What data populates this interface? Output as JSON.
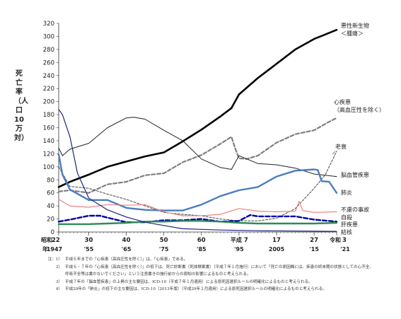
{
  "page": {
    "ylabel": "死亡率（人口10万対）"
  },
  "notes": [
    {
      "num": "注：1）",
      "text": "平成６年までの「心疾患（高血圧性を除く）」は、「心疾患」である。"
    },
    {
      "num": "2）",
      "text": "平成６・７年の「心疾患（高血圧性を除く）」の低下は、死亡診断書（死体検案書）（平成７年１月施行）において「死亡の原因欄には、疾患の終末期の状態としての心不全、呼吸不全等は書かないでください」という注意書きの施行前からの周知の影響によるものと考えられる。"
    },
    {
      "num": "3）",
      "text": "平成７年の「脳血管疾患」の上昇の主な要因は、ICD-10（平成７年１月適用）による原死因選択ルールの明確化によるものと考えられる。"
    },
    {
      "num": "4）",
      "text": "平成29年の「肺炎」の低下の主な要因は、ICD-10（2013年版）（平成29年１月適用）による原死因選択ルールの明確化によるものと考えられる。"
    }
  ],
  "chart_data": {
    "type": "line",
    "ylabel": "死亡率（人口10万対）",
    "ylim": [
      0,
      320
    ],
    "yticks": [
      0,
      20,
      40,
      60,
      80,
      100,
      120,
      140,
      160,
      180,
      200,
      220,
      240,
      260,
      280,
      300,
      320
    ],
    "xlim": [
      1947,
      2021
    ],
    "xticks": [
      {
        "year": 1947,
        "era": "昭和",
        "top": "22",
        "bottom": "1947"
      },
      {
        "year": 1955,
        "top": "30",
        "bottom": "'55"
      },
      {
        "year": 1965,
        "top": "40",
        "bottom": "'65"
      },
      {
        "year": 1975,
        "top": "50",
        "bottom": "'75"
      },
      {
        "year": 1985,
        "top": "60",
        "bottom": "'85"
      },
      {
        "year": 1995,
        "era": "平成",
        "top": "7",
        "bottom": "'95"
      },
      {
        "year": 2005,
        "top": "17",
        "bottom": "2005"
      },
      {
        "year": 2015,
        "top": "27",
        "bottom": "'15"
      },
      {
        "year": 2021,
        "era": "令和",
        "top": "3",
        "bottom": "'21"
      }
    ],
    "xaxis_era_label": "年",
    "grid": false,
    "series": [
      {
        "name": "悪性新生物\n＜腫瘍＞",
        "color": "#000000",
        "width": 2.6,
        "dash": "",
        "points": [
          [
            1947,
            69
          ],
          [
            1950,
            77
          ],
          [
            1955,
            88
          ],
          [
            1960,
            100
          ],
          [
            1965,
            108
          ],
          [
            1970,
            116
          ],
          [
            1975,
            122
          ],
          [
            1980,
            139
          ],
          [
            1985,
            157
          ],
          [
            1990,
            177
          ],
          [
            1993,
            190
          ],
          [
            1995,
            211
          ],
          [
            2000,
            236
          ],
          [
            2005,
            258
          ],
          [
            2010,
            280
          ],
          [
            2015,
            296
          ],
          [
            2018,
            303
          ],
          [
            2021,
            310
          ]
        ]
      },
      {
        "name": "心疾患\n（高血圧性を除く）",
        "color": "#7f7f7f",
        "width": 2.2,
        "dash": "5,3",
        "points": [
          [
            1947,
            62
          ],
          [
            1950,
            64
          ],
          [
            1955,
            60
          ],
          [
            1960,
            73
          ],
          [
            1965,
            77
          ],
          [
            1970,
            87
          ],
          [
            1975,
            90
          ],
          [
            1980,
            107
          ],
          [
            1985,
            118
          ],
          [
            1990,
            135
          ],
          [
            1993,
            146
          ],
          [
            1994,
            128
          ],
          [
            1995,
            113
          ],
          [
            1997,
            112
          ],
          [
            2000,
            117
          ],
          [
            2005,
            137
          ],
          [
            2010,
            150
          ],
          [
            2015,
            156
          ],
          [
            2018,
            166
          ],
          [
            2021,
            175
          ]
        ]
      },
      {
        "name": "老衰",
        "color": "#444444",
        "width": 1,
        "dash": "3,2",
        "points": [
          [
            1947,
            100
          ],
          [
            1950,
            70
          ],
          [
            1955,
            67
          ],
          [
            1960,
            58
          ],
          [
            1965,
            50
          ],
          [
            1970,
            40
          ],
          [
            1975,
            30
          ],
          [
            1980,
            27
          ],
          [
            1985,
            25
          ],
          [
            1990,
            20
          ],
          [
            1995,
            17
          ],
          [
            2000,
            17
          ],
          [
            2005,
            21
          ],
          [
            2010,
            36
          ],
          [
            2015,
            67
          ],
          [
            2018,
            88
          ],
          [
            2021,
            124
          ]
        ]
      },
      {
        "name": "脳血管疾患",
        "color": "#222222",
        "width": 1,
        "dash": "",
        "points": [
          [
            1947,
            129
          ],
          [
            1948,
            117
          ],
          [
            1950,
            127
          ],
          [
            1955,
            136
          ],
          [
            1960,
            160
          ],
          [
            1965,
            175
          ],
          [
            1967,
            176
          ],
          [
            1970,
            173
          ],
          [
            1975,
            156
          ],
          [
            1980,
            140
          ],
          [
            1985,
            112
          ],
          [
            1990,
            99
          ],
          [
            1993,
            96
          ],
          [
            1995,
            117
          ],
          [
            2000,
            105
          ],
          [
            2005,
            103
          ],
          [
            2010,
            98
          ],
          [
            2015,
            89
          ],
          [
            2021,
            85
          ]
        ]
      },
      {
        "name": "肺炎",
        "color": "#4a7ebf",
        "width": 2.4,
        "dash": "",
        "points": [
          [
            1947,
            119
          ],
          [
            1948,
            88
          ],
          [
            1950,
            65
          ],
          [
            1955,
            49
          ],
          [
            1960,
            49
          ],
          [
            1965,
            37
          ],
          [
            1970,
            34
          ],
          [
            1975,
            33
          ],
          [
            1980,
            33
          ],
          [
            1985,
            42
          ],
          [
            1990,
            55
          ],
          [
            1995,
            64
          ],
          [
            2000,
            69
          ],
          [
            2005,
            85
          ],
          [
            2010,
            94
          ],
          [
            2015,
            96
          ],
          [
            2016,
            95
          ],
          [
            2017,
            78
          ],
          [
            2019,
            77
          ],
          [
            2021,
            60
          ]
        ]
      },
      {
        "name": "不慮の事故",
        "color": "#f08080",
        "width": 1.2,
        "dash": "",
        "points": [
          [
            1947,
            50
          ],
          [
            1950,
            40
          ],
          [
            1955,
            38
          ],
          [
            1960,
            42
          ],
          [
            1965,
            41
          ],
          [
            1970,
            42
          ],
          [
            1975,
            31
          ],
          [
            1980,
            25
          ],
          [
            1985,
            25
          ],
          [
            1990,
            27
          ],
          [
            1995,
            36
          ],
          [
            2000,
            32
          ],
          [
            2005,
            31
          ],
          [
            2010,
            32
          ],
          [
            2011,
            47
          ],
          [
            2012,
            33
          ],
          [
            2015,
            30
          ],
          [
            2021,
            31
          ]
        ]
      },
      {
        "name": "自殺",
        "color": "#0000aa",
        "width": 2.4,
        "dash": "6,3",
        "points": [
          [
            1947,
            16
          ],
          [
            1950,
            19
          ],
          [
            1955,
            25
          ],
          [
            1958,
            25
          ],
          [
            1960,
            22
          ],
          [
            1965,
            15
          ],
          [
            1970,
            15
          ],
          [
            1975,
            18
          ],
          [
            1980,
            18
          ],
          [
            1985,
            20
          ],
          [
            1990,
            16
          ],
          [
            1995,
            17
          ],
          [
            1998,
            26
          ],
          [
            2000,
            24
          ],
          [
            2005,
            24
          ],
          [
            2010,
            24
          ],
          [
            2015,
            19
          ],
          [
            2021,
            16
          ]
        ]
      },
      {
        "name": "肝疾患",
        "color": "#2e8b57",
        "width": 2.4,
        "dash": "",
        "points": [
          [
            1947,
            12
          ],
          [
            1950,
            12
          ],
          [
            1955,
            12
          ],
          [
            1960,
            13
          ],
          [
            1965,
            14
          ],
          [
            1970,
            16
          ],
          [
            1975,
            16
          ],
          [
            1980,
            17
          ],
          [
            1985,
            17
          ],
          [
            1990,
            16
          ],
          [
            1995,
            14
          ],
          [
            2000,
            13
          ],
          [
            2005,
            13
          ],
          [
            2010,
            13
          ],
          [
            2015,
            13
          ],
          [
            2021,
            14
          ]
        ]
      },
      {
        "name": "結核",
        "color": "#1a237e",
        "width": 1.2,
        "dash": "",
        "points": [
          [
            1947,
            188
          ],
          [
            1948,
            180
          ],
          [
            1950,
            146
          ],
          [
            1952,
            90
          ],
          [
            1955,
            52
          ],
          [
            1960,
            34
          ],
          [
            1965,
            23
          ],
          [
            1970,
            15
          ],
          [
            1975,
            10
          ],
          [
            1980,
            5
          ],
          [
            1985,
            4
          ],
          [
            1990,
            3
          ],
          [
            2000,
            2
          ],
          [
            2021,
            1
          ]
        ]
      }
    ]
  }
}
